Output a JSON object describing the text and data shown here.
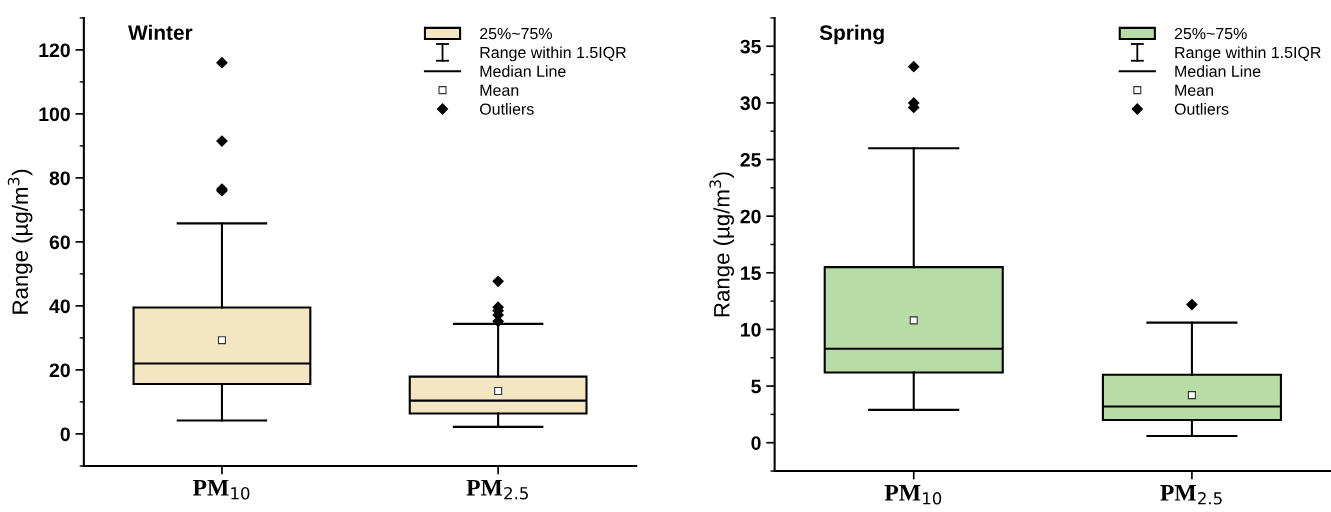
{
  "chart_data": [
    {
      "type": "box",
      "title": "Winter",
      "ylabel": "Range (µg/m$^{3}$)",
      "categories": [
        "PM$_{10}$",
        "PM$_{2.5}$"
      ],
      "ylim": [
        -10,
        130
      ],
      "yticks": [
        0,
        20,
        40,
        60,
        80,
        100,
        120
      ],
      "legend": "top right",
      "series": [
        {
          "name": "25%~75%",
          "color": "#f5e6c3",
          "boxes": [
            {
              "low": 4.2,
              "q1": 15.6,
              "median": 22,
              "q3": 39.5,
              "high": 65.8,
              "mean": 29.3,
              "outliers": [
                116,
                91.5,
                76.5,
                76
              ]
            },
            {
              "low": 2.2,
              "q1": 6.4,
              "median": 10.4,
              "q3": 17.9,
              "high": 34.4,
              "mean": 13.4,
              "outliers": [
                47.7,
                39.6,
                38.5,
                37.2,
                35.2
              ]
            }
          ]
        }
      ],
      "annotations": [
        "Range within 1.5IQR",
        "Median Line",
        "Mean",
        "Outliers"
      ]
    },
    {
      "type": "box",
      "title": "Spring",
      "ylabel": "Range (µg/m$^{3}$)",
      "categories": [
        "PM$_{10}$",
        "PM$_{2.5}$"
      ],
      "ylim": [
        -2.5,
        37.5
      ],
      "yticks": [
        0,
        5,
        10,
        15,
        20,
        25,
        30,
        35
      ],
      "legend": "top right",
      "series": [
        {
          "name": "25%~75%",
          "color": "#b8dca5",
          "boxes": [
            {
              "low": 2.9,
              "q1": 6.2,
              "median": 8.3,
              "q3": 15.5,
              "high": 26,
              "mean": 10.8,
              "outliers": [
                33.2,
                30.0,
                29.6
              ]
            },
            {
              "low": 0.6,
              "q1": 2.0,
              "median": 3.2,
              "q3": 6.0,
              "high": 10.6,
              "mean": 4.2,
              "outliers": [
                12.2
              ]
            }
          ]
        }
      ],
      "annotations": [
        "Range within 1.5IQR",
        "Median Line",
        "Mean",
        "Outliers"
      ]
    }
  ]
}
